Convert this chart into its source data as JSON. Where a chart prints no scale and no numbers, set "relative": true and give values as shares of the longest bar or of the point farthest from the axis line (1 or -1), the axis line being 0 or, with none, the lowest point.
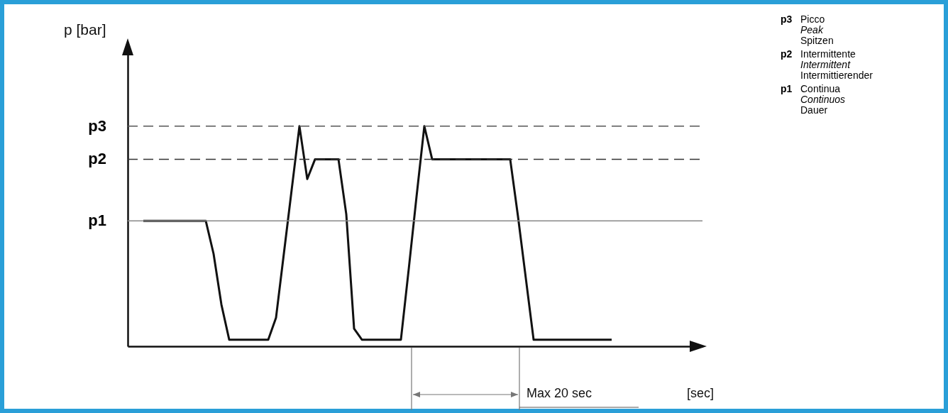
{
  "chart_data": {
    "type": "line",
    "relative": true,
    "categories": [
      null,
      null,
      null,
      null,
      null,
      null,
      null,
      null,
      null,
      null,
      null,
      null,
      null,
      null,
      null,
      null,
      null,
      null,
      null,
      null,
      null,
      null,
      null,
      null,
      null,
      null,
      null,
      null,
      null,
      null,
      null,
      null,
      null,
      null,
      null,
      null,
      null,
      null,
      null,
      null,
      null,
      null,
      null,
      null,
      null,
      null,
      null,
      null,
      null,
      null,
      null,
      null,
      null,
      null,
      null,
      null,
      null,
      null,
      null,
      null,
      null
    ],
    "series": [
      {
        "color": "#111111",
        "values": [
          0.57,
          0.57,
          0.57,
          0.57,
          0.57,
          0.57,
          0.57,
          0.57,
          0.57,
          0.42,
          0.19,
          0.03,
          0.03,
          0.03,
          0.03,
          0.03,
          0.03,
          0.13,
          0.42,
          0.71,
          1.0,
          0.76,
          0.85,
          0.85,
          0.85,
          0.85,
          0.6,
          0.08,
          0.03,
          0.03,
          0.03,
          0.03,
          0.03,
          0.03,
          0.35,
          0.68,
          1.0,
          0.85,
          0.85,
          0.85,
          0.85,
          0.85,
          0.85,
          0.85,
          0.85,
          0.85,
          0.85,
          0.85,
          0.59,
          0.31,
          0.03,
          0.03,
          0.03,
          0.03,
          0.03,
          0.03,
          0.03,
          0.03,
          0.03,
          0.03,
          0.03
        ]
      }
    ],
    "marker": "none",
    "line_style": "solid",
    "legend": false,
    "grid": false,
    "ref_lines": [
      {
        "axis": "y",
        "value": 1.0,
        "label": "p3",
        "color": "#555555",
        "line_style": "dashed"
      },
      {
        "axis": "y",
        "value": 0.85,
        "label": "p2",
        "color": "#333333",
        "line_style": "dashed"
      },
      {
        "axis": "y",
        "value": 0.57,
        "label": "p1",
        "color": "#888888",
        "line_style": "solid"
      }
    ],
    "annotations": [
      "p3",
      "Picco",
      "Peak",
      "Spitzen",
      "p2",
      "Intermittente",
      "Intermittent",
      "Intermittierender",
      "p1",
      "Continua",
      "Continuos",
      "Dauer",
      "Max 20 sec",
      "p [bar]",
      "[sec]"
    ]
  }
}
